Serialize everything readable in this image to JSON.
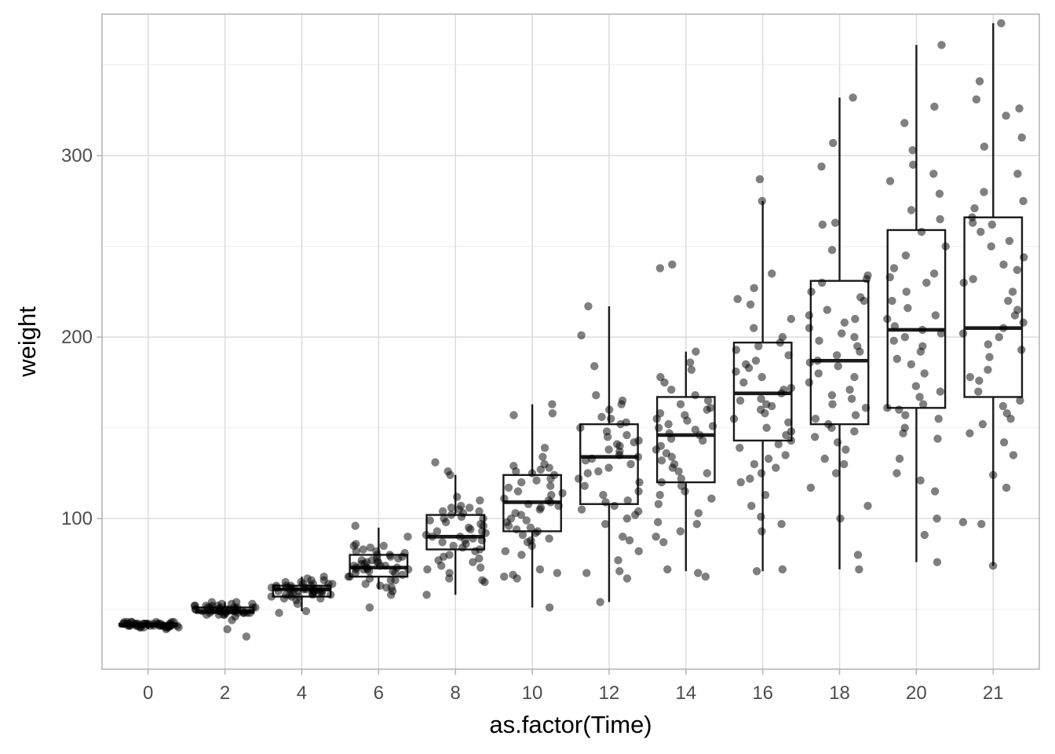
{
  "chart_data": {
    "type": "boxplot",
    "xlabel": "as.factor(Time)",
    "ylabel": "weight",
    "ylim": [
      17,
      378
    ],
    "yticks": [
      100,
      200,
      300
    ],
    "grid": true,
    "legend": "none",
    "categories": [
      "0",
      "2",
      "4",
      "6",
      "8",
      "10",
      "12",
      "14",
      "16",
      "18",
      "20",
      "21"
    ],
    "boxes": [
      {
        "category": "0",
        "whisker_low": 39,
        "q1": 41,
        "median": 41,
        "q3": 42,
        "whisker_high": 43
      },
      {
        "category": "2",
        "whisker_low": 46,
        "q1": 48,
        "median": 49,
        "q3": 51,
        "whisker_high": 54
      },
      {
        "category": "4",
        "whisker_low": 49,
        "q1": 57,
        "median": 61,
        "q3": 63,
        "whisker_high": 68
      },
      {
        "category": "6",
        "whisker_low": 61,
        "q1": 68,
        "median": 73,
        "q3": 80,
        "whisker_high": 95
      },
      {
        "category": "8",
        "whisker_low": 58,
        "q1": 83,
        "median": 90,
        "q3": 102,
        "whisker_high": 124
      },
      {
        "category": "10",
        "whisker_low": 51,
        "q1": 93,
        "median": 109,
        "q3": 124,
        "whisker_high": 163
      },
      {
        "category": "12",
        "whisker_low": 54,
        "q1": 108,
        "median": 134,
        "q3": 152,
        "whisker_high": 217
      },
      {
        "category": "14",
        "whisker_low": 71,
        "q1": 120,
        "median": 146,
        "q3": 167,
        "whisker_high": 192
      },
      {
        "category": "16",
        "whisker_low": 71,
        "q1": 143,
        "median": 169,
        "q3": 197,
        "whisker_high": 275
      },
      {
        "category": "18",
        "whisker_low": 72,
        "q1": 152,
        "median": 187,
        "q3": 231,
        "whisker_high": 332
      },
      {
        "category": "20",
        "whisker_low": 76,
        "q1": 161,
        "median": 204,
        "q3": 259,
        "whisker_high": 361
      },
      {
        "category": "21",
        "whisker_low": 74,
        "q1": 167,
        "median": 205,
        "q3": 266,
        "whisker_high": 373
      }
    ],
    "points": [
      {
        "category": "0",
        "values": [
          42,
          41,
          43,
          40,
          41,
          42,
          41,
          43,
          42,
          40,
          41,
          42,
          39,
          41,
          42,
          43,
          41,
          40,
          42,
          41,
          43,
          42,
          41,
          40,
          42,
          41,
          43,
          41,
          42,
          40,
          41,
          42,
          43,
          41,
          40,
          42,
          41,
          42,
          41,
          43,
          42,
          41,
          40,
          42,
          41,
          42,
          41,
          42,
          41,
          42
        ]
      },
      {
        "category": "2",
        "values": [
          50,
          49,
          48,
          51,
          52,
          47,
          49,
          53,
          51,
          50,
          48,
          49,
          46,
          52,
          54,
          49,
          50,
          51,
          48,
          47,
          39,
          35,
          44,
          51,
          50,
          49,
          53,
          48,
          50,
          52,
          49,
          51,
          47,
          50,
          48,
          53,
          52,
          49,
          51,
          50,
          48,
          54,
          50,
          49,
          51,
          47,
          52,
          50,
          49,
          48
        ]
      },
      {
        "category": "4",
        "values": [
          61,
          59,
          63,
          64,
          62,
          58,
          57,
          60,
          61,
          66,
          65,
          56,
          55,
          53,
          62,
          63,
          60,
          59,
          61,
          64,
          67,
          68,
          58,
          57,
          62,
          61,
          63,
          60,
          59,
          65,
          66,
          62,
          61,
          48,
          49,
          56,
          58,
          60,
          62,
          64,
          59,
          61,
          63,
          57,
          60,
          62,
          58,
          61,
          64,
          60
        ]
      },
      {
        "category": "6",
        "values": [
          73,
          72,
          76,
          80,
          82,
          79,
          71,
          68,
          74,
          77,
          85,
          86,
          96,
          70,
          66,
          62,
          58,
          51,
          75,
          78,
          81,
          73,
          74,
          69,
          67,
          72,
          77,
          83,
          85,
          90,
          72,
          71,
          76,
          78,
          64,
          63,
          60,
          74,
          79,
          80,
          75,
          73,
          70,
          68,
          72,
          76,
          82,
          84,
          66,
          62
        ]
      },
      {
        "category": "8",
        "values": [
          90,
          98,
          102,
          106,
          107,
          100,
          93,
          88,
          84,
          80,
          78,
          74,
          72,
          70,
          67,
          66,
          65,
          58,
          124,
          126,
          131,
          110,
          104,
          96,
          95,
          92,
          89,
          85,
          86,
          83,
          79,
          76,
          101,
          103,
          105,
          99,
          97,
          94,
          91,
          88,
          87,
          82,
          106,
          100,
          112,
          104,
          93,
          90,
          77,
          73
        ]
      },
      {
        "category": "10",
        "values": [
          109,
          115,
          120,
          124,
          128,
          130,
          139,
          157,
          158,
          163,
          110,
          103,
          100,
          98,
          94,
          91,
          88,
          85,
          82,
          80,
          72,
          70,
          69,
          68,
          67,
          51,
          125,
          127,
          121,
          117,
          113,
          108,
          106,
          105,
          102,
          96,
          93,
          92,
          89,
          87,
          111,
          114,
          118,
          122,
          126,
          129,
          134,
          107,
          99,
          95
        ]
      },
      {
        "category": "12",
        "values": [
          134,
          140,
          145,
          152,
          155,
          160,
          163,
          165,
          168,
          184,
          201,
          217,
          130,
          128,
          126,
          122,
          118,
          115,
          110,
          107,
          104,
          100,
          90,
          88,
          82,
          77,
          71,
          70,
          67,
          54,
          135,
          138,
          142,
          148,
          150,
          137,
          132,
          125,
          120,
          113,
          109,
          105,
          102,
          97,
          141,
          143,
          146,
          153,
          156,
          133
        ]
      },
      {
        "category": "14",
        "values": [
          146,
          150,
          155,
          160,
          163,
          165,
          168,
          171,
          175,
          178,
          182,
          186,
          192,
          238,
          240,
          144,
          140,
          136,
          132,
          128,
          125,
          120,
          115,
          111,
          108,
          103,
          97,
          93,
          90,
          87,
          72,
          70,
          68,
          149,
          152,
          157,
          147,
          143,
          138,
          134,
          130,
          126,
          122,
          118,
          113,
          98,
          161,
          158,
          154,
          151
        ]
      },
      {
        "category": "16",
        "values": [
          169,
          175,
          181,
          185,
          190,
          197,
          205,
          210,
          218,
          221,
          227,
          235,
          275,
          287,
          166,
          162,
          158,
          155,
          150,
          146,
          141,
          135,
          130,
          125,
          120,
          113,
          107,
          101,
          97,
          93,
          71,
          72,
          172,
          178,
          187,
          195,
          200,
          163,
          153,
          148,
          143,
          139,
          133,
          128,
          122,
          160,
          165,
          171,
          183,
          193
        ]
      },
      {
        "category": "18",
        "values": [
          187,
          192,
          198,
          205,
          210,
          215,
          220,
          230,
          234,
          248,
          262,
          263,
          294,
          307,
          332,
          184,
          178,
          171,
          166,
          161,
          157,
          152,
          148,
          145,
          138,
          133,
          125,
          117,
          107,
          100,
          80,
          72,
          190,
          200,
          208,
          225,
          232,
          180,
          175,
          168,
          163,
          155,
          150,
          142,
          130,
          195,
          202,
          212,
          222,
          186
        ]
      },
      {
        "category": "20",
        "values": [
          204,
          210,
          216,
          225,
          233,
          238,
          245,
          250,
          258,
          265,
          270,
          279,
          286,
          290,
          295,
          303,
          318,
          327,
          361,
          200,
          195,
          188,
          180,
          173,
          167,
          161,
          157,
          150,
          144,
          133,
          125,
          121,
          115,
          100,
          91,
          76,
          206,
          212,
          220,
          230,
          235,
          198,
          192,
          185,
          170,
          163,
          160,
          155,
          147,
          202
        ]
      },
      {
        "category": "21",
        "values": [
          205,
          212,
          220,
          230,
          237,
          244,
          253,
          258,
          263,
          266,
          271,
          280,
          290,
          305,
          322,
          331,
          341,
          373,
          200,
          196,
          189,
          182,
          176,
          170,
          165,
          158,
          152,
          147,
          142,
          135,
          124,
          117,
          98,
          97,
          74,
          208,
          215,
          225,
          232,
          240,
          250,
          262,
          275,
          310,
          326,
          202,
          193,
          178,
          162,
          155
        ]
      }
    ]
  }
}
